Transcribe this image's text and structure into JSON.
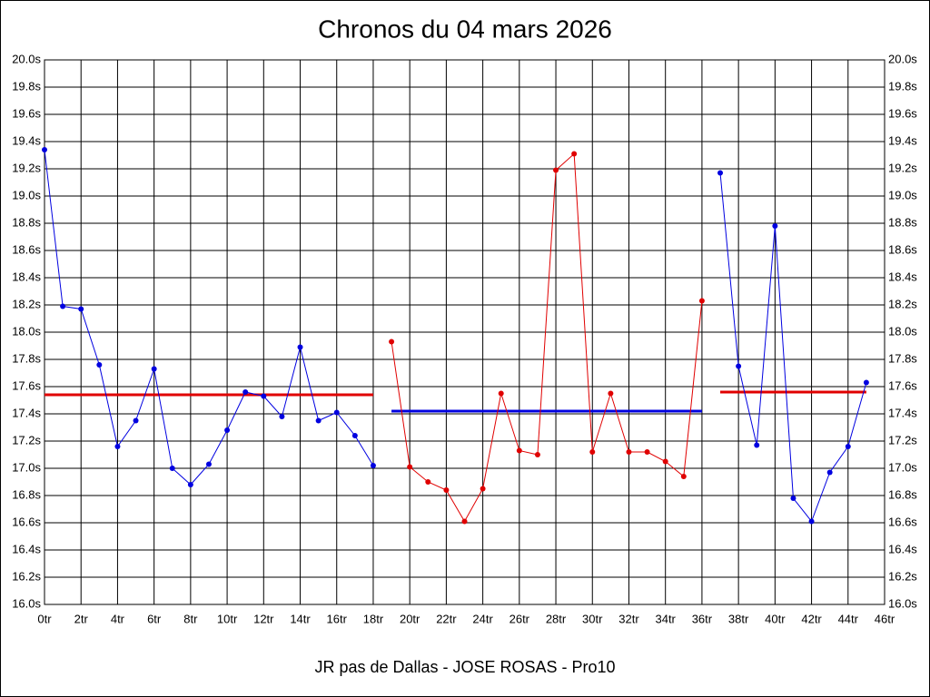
{
  "chart_data": {
    "type": "line",
    "title": "Chronos du 04 mars 2026",
    "xlabel": "JR pas de Dallas - JOSE ROSAS - Pro10",
    "xlim": [
      0,
      46
    ],
    "ylim": [
      16,
      20
    ],
    "grid": true,
    "xticks": [
      {
        "value": 0,
        "label": "0tr"
      },
      {
        "value": 2,
        "label": "2tr"
      },
      {
        "value": 4,
        "label": "4tr"
      },
      {
        "value": 6,
        "label": "6tr"
      },
      {
        "value": 8,
        "label": "8tr"
      },
      {
        "value": 10,
        "label": "10tr"
      },
      {
        "value": 12,
        "label": "12tr"
      },
      {
        "value": 14,
        "label": "14tr"
      },
      {
        "value": 16,
        "label": "16tr"
      },
      {
        "value": 18,
        "label": "18tr"
      },
      {
        "value": 20,
        "label": "20tr"
      },
      {
        "value": 22,
        "label": "22tr"
      },
      {
        "value": 24,
        "label": "24tr"
      },
      {
        "value": 26,
        "label": "26tr"
      },
      {
        "value": 28,
        "label": "28tr"
      },
      {
        "value": 30,
        "label": "30tr"
      },
      {
        "value": 32,
        "label": "32tr"
      },
      {
        "value": 34,
        "label": "34tr"
      },
      {
        "value": 36,
        "label": "36tr"
      },
      {
        "value": 38,
        "label": "38tr"
      },
      {
        "value": 40,
        "label": "40tr"
      },
      {
        "value": 42,
        "label": "42tr"
      },
      {
        "value": 44,
        "label": "44tr"
      },
      {
        "value": 46,
        "label": "46tr"
      }
    ],
    "yticks": [
      {
        "value": 16.0,
        "label": "16.0s"
      },
      {
        "value": 16.2,
        "label": "16.2s"
      },
      {
        "value": 16.4,
        "label": "16.4s"
      },
      {
        "value": 16.6,
        "label": "16.6s"
      },
      {
        "value": 16.8,
        "label": "16.8s"
      },
      {
        "value": 17.0,
        "label": "17.0s"
      },
      {
        "value": 17.2,
        "label": "17.2s"
      },
      {
        "value": 17.4,
        "label": "17.4s"
      },
      {
        "value": 17.6,
        "label": "17.6s"
      },
      {
        "value": 17.8,
        "label": "17.8s"
      },
      {
        "value": 18.0,
        "label": "18.0s"
      },
      {
        "value": 18.2,
        "label": "18.2s"
      },
      {
        "value": 18.4,
        "label": "18.4s"
      },
      {
        "value": 18.6,
        "label": "18.6s"
      },
      {
        "value": 18.8,
        "label": "18.8s"
      },
      {
        "value": 19.0,
        "label": "19.0s"
      },
      {
        "value": 19.2,
        "label": "19.2s"
      },
      {
        "value": 19.4,
        "label": "19.4s"
      },
      {
        "value": 19.6,
        "label": "19.6s"
      },
      {
        "value": 19.8,
        "label": "19.8s"
      },
      {
        "value": 20.0,
        "label": "20.0s"
      }
    ],
    "series": [
      {
        "color": "#0000e0",
        "x": [
          0,
          1,
          2,
          3,
          4,
          5,
          6,
          7,
          8,
          9,
          10,
          11,
          12,
          13,
          14,
          15,
          16,
          17,
          18
        ],
        "values": [
          19.34,
          18.19,
          18.17,
          17.76,
          17.16,
          17.35,
          17.73,
          17.0,
          16.88,
          17.03,
          17.28,
          17.56,
          17.53,
          17.38,
          17.89,
          17.35,
          17.41,
          17.24,
          17.02
        ]
      },
      {
        "color": "#e00000",
        "x": [
          19,
          20,
          21,
          22,
          23,
          24,
          25,
          26,
          27,
          28,
          29,
          30,
          31,
          32,
          33,
          34,
          35,
          36
        ],
        "values": [
          17.93,
          17.01,
          16.9,
          16.84,
          16.61,
          16.85,
          17.55,
          17.13,
          17.1,
          19.19,
          19.31,
          17.12,
          17.55,
          17.12,
          17.12,
          17.05,
          16.94,
          18.23
        ]
      },
      {
        "color": "#0000e0",
        "x": [
          37,
          38,
          39,
          40,
          41,
          42,
          43,
          44,
          45
        ],
        "values": [
          19.17,
          17.75,
          17.17,
          18.78,
          16.78,
          16.61,
          16.97,
          17.16,
          17.63
        ]
      }
    ],
    "hlines": [
      {
        "color": "#e00000",
        "value": 17.54,
        "x": [
          0,
          18
        ]
      },
      {
        "color": "#0000e0",
        "value": 17.42,
        "x": [
          19,
          36
        ]
      },
      {
        "color": "#e00000",
        "value": 17.56,
        "x": [
          37,
          45
        ]
      }
    ]
  }
}
